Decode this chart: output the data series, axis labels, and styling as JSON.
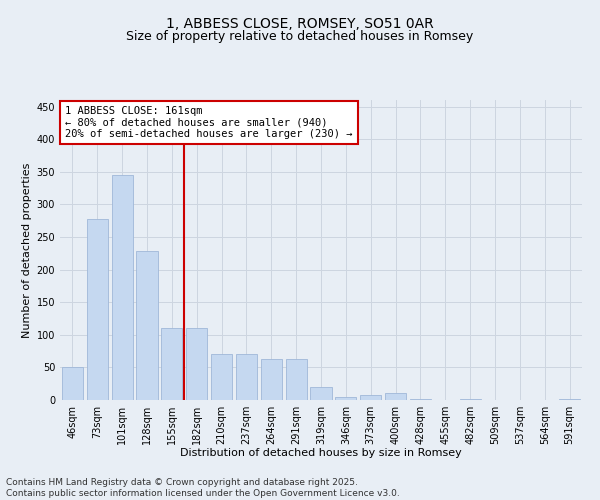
{
  "title": "1, ABBESS CLOSE, ROMSEY, SO51 0AR",
  "subtitle": "Size of property relative to detached houses in Romsey",
  "xlabel": "Distribution of detached houses by size in Romsey",
  "ylabel": "Number of detached properties",
  "categories": [
    "46sqm",
    "73sqm",
    "101sqm",
    "128sqm",
    "155sqm",
    "182sqm",
    "210sqm",
    "237sqm",
    "264sqm",
    "291sqm",
    "319sqm",
    "346sqm",
    "373sqm",
    "400sqm",
    "428sqm",
    "455sqm",
    "482sqm",
    "509sqm",
    "537sqm",
    "564sqm",
    "591sqm"
  ],
  "values": [
    50,
    278,
    345,
    228,
    110,
    110,
    70,
    70,
    63,
    63,
    20,
    5,
    7,
    10,
    2,
    0,
    2,
    0,
    0,
    0,
    2
  ],
  "bar_color": "#c5d8f0",
  "bar_edge_color": "#a0b8d8",
  "red_line_x": 4.5,
  "red_line_color": "#cc0000",
  "annotation_text": "1 ABBESS CLOSE: 161sqm\n← 80% of detached houses are smaller (940)\n20% of semi-detached houses are larger (230) →",
  "annotation_box_color": "#ffffff",
  "annotation_box_edge": "#cc0000",
  "ylim": [
    0,
    460
  ],
  "yticks": [
    0,
    50,
    100,
    150,
    200,
    250,
    300,
    350,
    400,
    450
  ],
  "grid_color": "#cdd5e0",
  "background_color": "#e8eef5",
  "footer_text": "Contains HM Land Registry data © Crown copyright and database right 2025.\nContains public sector information licensed under the Open Government Licence v3.0.",
  "title_fontsize": 10,
  "subtitle_fontsize": 9,
  "axis_label_fontsize": 8,
  "tick_fontsize": 7,
  "annotation_fontsize": 7.5,
  "footer_fontsize": 6.5
}
